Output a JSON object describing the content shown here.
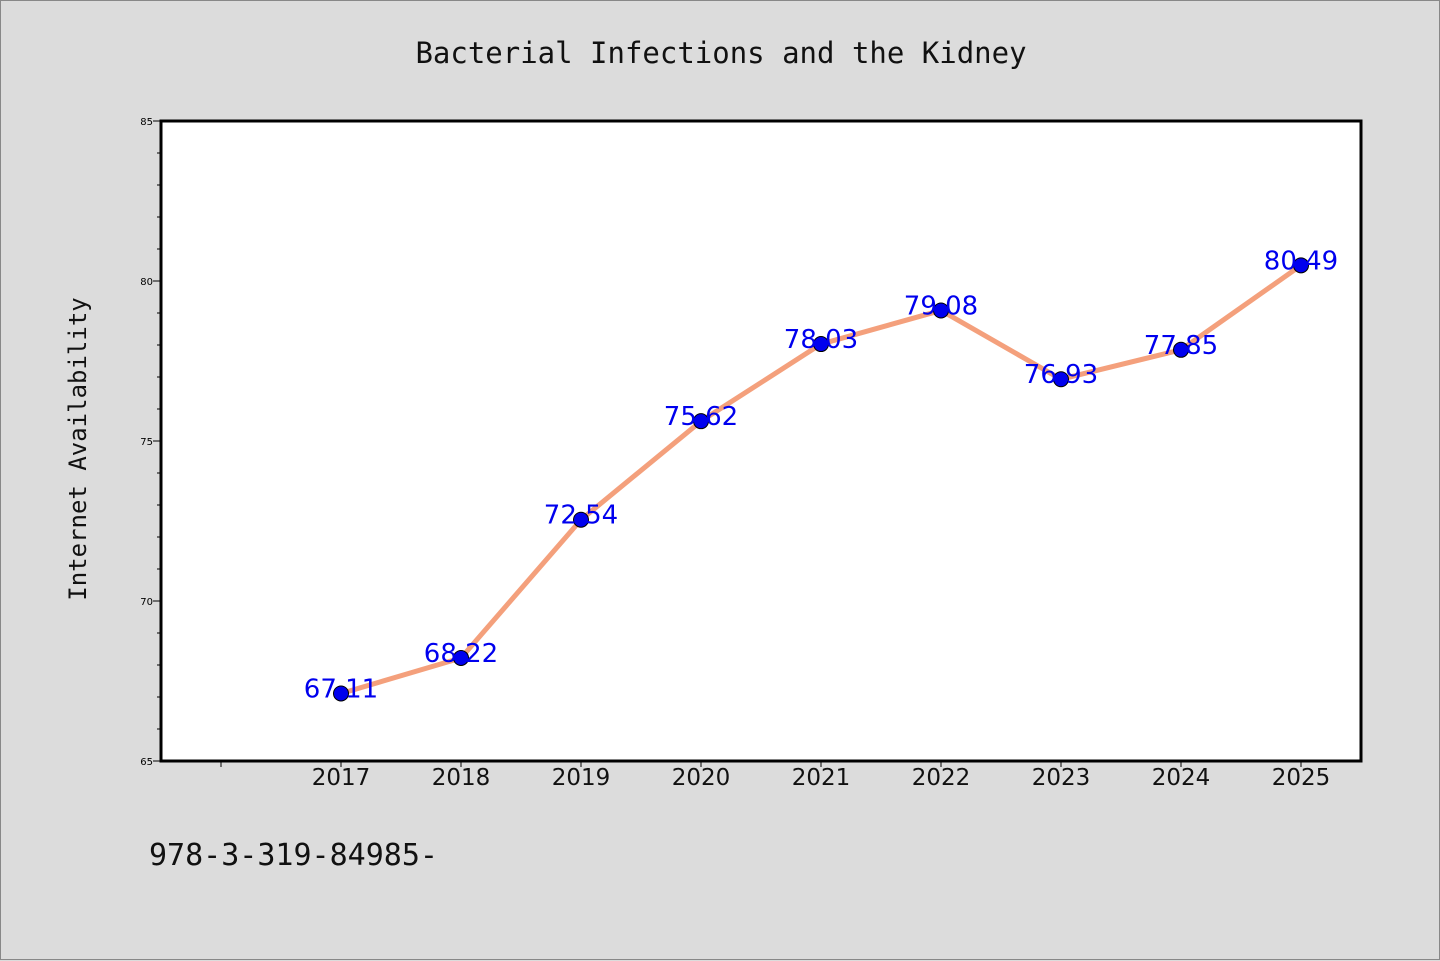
{
  "footer_text": "978-3-319-84985-",
  "colors": {
    "background": "#dcdcdc",
    "plot_area": "#ffffff",
    "line": "#f4a07c",
    "marker": "#0000ee",
    "label": "#0000ee"
  },
  "chart_data": {
    "type": "line",
    "title": "Bacterial Infections and the Kidney",
    "xlabel": "",
    "ylabel": "Internet Availability",
    "x": [
      "2017",
      "2018",
      "2019",
      "2020",
      "2021",
      "2022",
      "2023",
      "2024",
      "2025"
    ],
    "series": [
      {
        "values": [
          67.11,
          68.22,
          72.54,
          75.62,
          78.03,
          79.08,
          76.93,
          77.85,
          80.49
        ],
        "labels": [
          "67.11",
          "68.22",
          "72.54",
          "75.62",
          "78.03",
          "79.08",
          "76.93",
          "77.85",
          "80.49"
        ]
      }
    ],
    "ylim": [
      65,
      85
    ],
    "yticks": [
      "65",
      "70",
      "75",
      "80",
      "85"
    ],
    "grid": false,
    "legend": "none"
  }
}
